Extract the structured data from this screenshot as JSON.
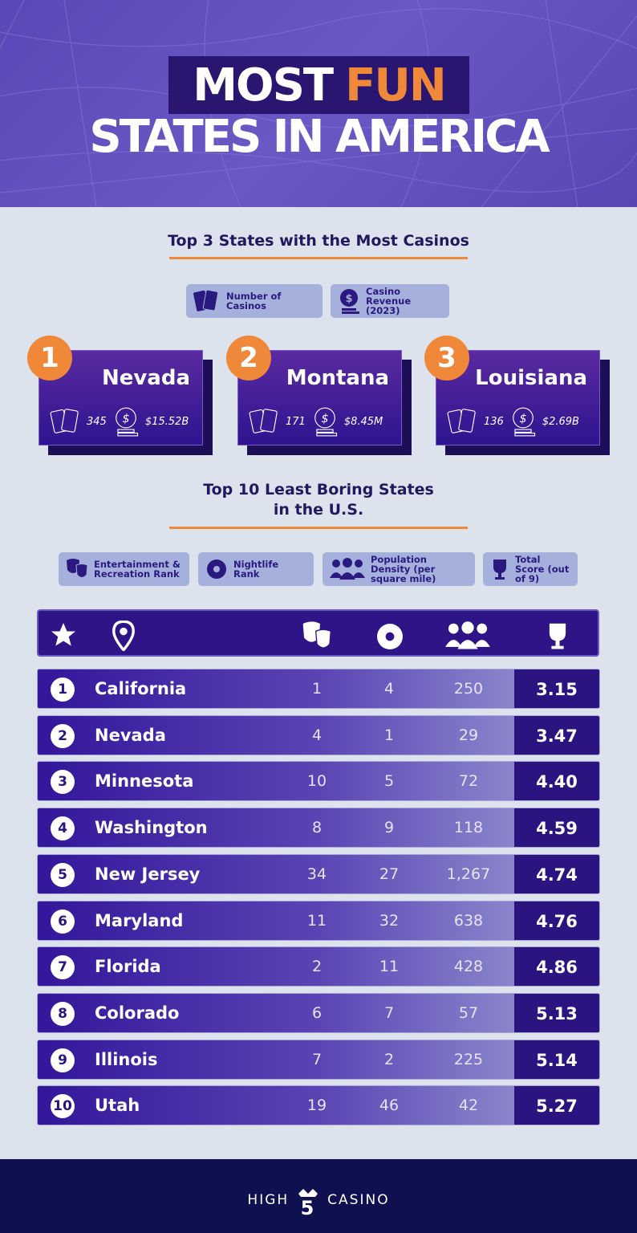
{
  "header": {
    "title_part1": "MOST",
    "title_part2": "FUN",
    "title_line2": "STATES IN AMERICA"
  },
  "casinos": {
    "title": "Top 3 States with the Most Casinos",
    "legend": [
      {
        "icon": "cards-icon",
        "label": "Number of Casinos"
      },
      {
        "icon": "coin-icon",
        "label": "Casino Revenue (2023)"
      }
    ],
    "states": [
      {
        "rank": "1",
        "name": "Nevada",
        "casinos": "345",
        "revenue": "$15.52B"
      },
      {
        "rank": "2",
        "name": "Montana",
        "casinos": "171",
        "revenue": "$8.45M"
      },
      {
        "rank": "3",
        "name": "Louisiana",
        "casinos": "136",
        "revenue": "$2.69B"
      }
    ]
  },
  "boring": {
    "title_line1": "Top 10 Least Boring States",
    "title_line2": "in the U.S.",
    "legend": [
      {
        "icon": "theater-masks-icon",
        "label": "Entertainment & Recreation Rank"
      },
      {
        "icon": "disco-ball-icon",
        "label": "Nightlife Rank"
      },
      {
        "icon": "people-icon",
        "label": "Population Density (per square mile)"
      },
      {
        "icon": "trophy-icon",
        "label": "Total Score (out of 9)"
      }
    ],
    "columns_icons": [
      "star-icon",
      "location-pin-icon",
      "theater-masks-icon",
      "disco-ball-icon",
      "people-icon",
      "trophy-icon"
    ],
    "rows": [
      {
        "rank": "1",
        "state": "California",
        "entertainment": "1",
        "nightlife": "4",
        "density": "250",
        "score": "3.15"
      },
      {
        "rank": "2",
        "state": "Nevada",
        "entertainment": "4",
        "nightlife": "1",
        "density": "29",
        "score": "3.47"
      },
      {
        "rank": "3",
        "state": "Minnesota",
        "entertainment": "10",
        "nightlife": "5",
        "density": "72",
        "score": "4.40"
      },
      {
        "rank": "4",
        "state": "Washington",
        "entertainment": "8",
        "nightlife": "9",
        "density": "118",
        "score": "4.59"
      },
      {
        "rank": "5",
        "state": "New Jersey",
        "entertainment": "34",
        "nightlife": "27",
        "density": "1,267",
        "score": "4.74"
      },
      {
        "rank": "6",
        "state": "Maryland",
        "entertainment": "11",
        "nightlife": "32",
        "density": "638",
        "score": "4.76"
      },
      {
        "rank": "7",
        "state": "Florida",
        "entertainment": "2",
        "nightlife": "11",
        "density": "428",
        "score": "4.86"
      },
      {
        "rank": "8",
        "state": "Colorado",
        "entertainment": "6",
        "nightlife": "7",
        "density": "57",
        "score": "5.13"
      },
      {
        "rank": "9",
        "state": "Illinois",
        "entertainment": "7",
        "nightlife": "2",
        "density": "225",
        "score": "5.14"
      },
      {
        "rank": "10",
        "state": "Utah",
        "entertainment": "19",
        "nightlife": "46",
        "density": "42",
        "score": "5.27"
      }
    ]
  },
  "footer": {
    "brand_left": "HIGH",
    "brand_right": "CASINO",
    "logo_text": "HIGH 5 CASINO"
  },
  "colors": {
    "accent": "#f0883a",
    "purple_dark": "#2b1480",
    "navy": "#0e1050",
    "background": "#dde3ec"
  }
}
